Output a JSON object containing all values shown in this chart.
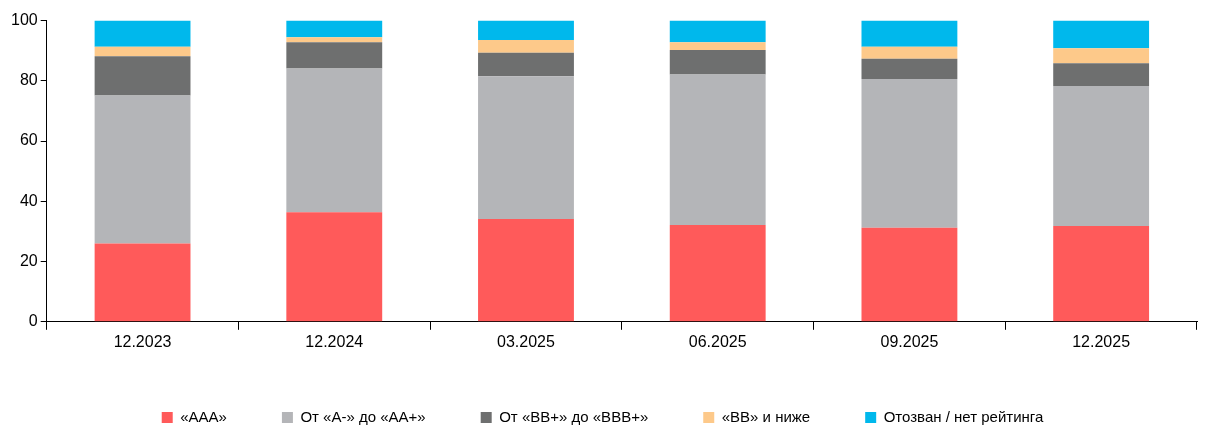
{
  "chart_data": {
    "type": "bar",
    "stacked": true,
    "categories": [
      "12.2023",
      "12.2024",
      "03.2025",
      "06.2025",
      "09.2025",
      "12.2025"
    ],
    "series": [
      {
        "name": "«AAA»",
        "color": "#ff5a5a",
        "values": [
          26,
          36.4,
          34.1,
          32.1,
          31.2,
          31.8
        ]
      },
      {
        "name": "От «A-» до «AA+»",
        "color": "#b4b5b8",
        "values": [
          49.1,
          47.7,
          47.4,
          50,
          49.4,
          46.5
        ]
      },
      {
        "name": "От «BB+» до «BBB+»",
        "color": "#6e6f6f",
        "values": [
          13.1,
          8.7,
          7.8,
          8.1,
          6.7,
          7.5
        ]
      },
      {
        "name": "«BB» и ниже",
        "color": "#fdc98a",
        "values": [
          3.1,
          1.7,
          4.3,
          2.6,
          4,
          5
        ]
      },
      {
        "name": "Отозван / нет рейтинга",
        "color": "#00b8ec",
        "values": [
          8.7,
          5.5,
          6.4,
          7.2,
          8.7,
          9.2
        ]
      }
    ],
    "ylim": [
      0,
      100
    ],
    "yticks": [
      0,
      20,
      40,
      60,
      80,
      100
    ],
    "grid": false,
    "legend": "bottom"
  }
}
